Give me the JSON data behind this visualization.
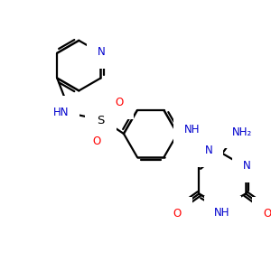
{
  "bg_color": "#ffffff",
  "black": "#000000",
  "blue": "#0000cd",
  "red": "#ff0000",
  "lw": 1.6,
  "figsize": [
    3.0,
    3.0
  ],
  "dpi": 100,
  "xlim": [
    0,
    300
  ],
  "ylim": [
    0,
    300
  ]
}
